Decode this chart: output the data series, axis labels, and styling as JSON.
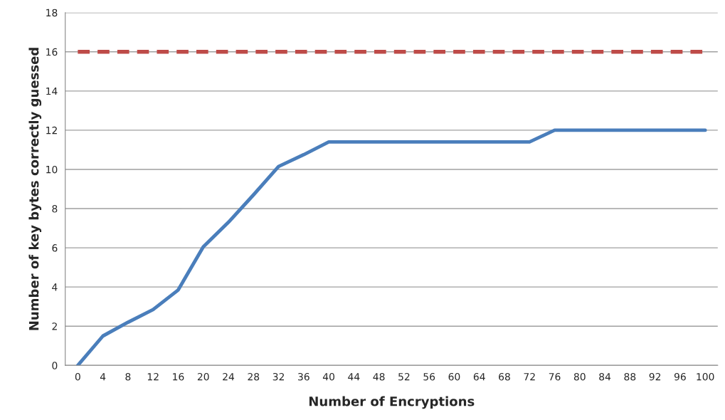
{
  "chart_data": {
    "type": "line",
    "xlabel": "Number of Encryptions",
    "ylabel": "Number of key bytes correctly guessed",
    "categories": [
      "0",
      "4",
      "8",
      "12",
      "16",
      "20",
      "24",
      "28",
      "32",
      "36",
      "40",
      "44",
      "48",
      "52",
      "56",
      "60",
      "64",
      "68",
      "72",
      "76",
      "80",
      "84",
      "88",
      "92",
      "96",
      "100"
    ],
    "series": [
      {
        "color": "#4a7ebb",
        "line_style": "solid",
        "values": [
          0,
          1.5,
          2.2,
          2.85,
          3.85,
          6.05,
          7.3,
          8.7,
          10.15,
          10.75,
          11.4,
          11.4,
          11.4,
          11.4,
          11.4,
          11.4,
          11.4,
          11.4,
          11.4,
          12,
          12,
          12,
          12,
          12,
          12,
          12
        ]
      },
      {
        "color": "#be4b48",
        "line_style": "dashed",
        "values": [
          16,
          16,
          16,
          16,
          16,
          16,
          16,
          16,
          16,
          16,
          16,
          16,
          16,
          16,
          16,
          16,
          16,
          16,
          16,
          16,
          16,
          16,
          16,
          16,
          16,
          16
        ]
      }
    ],
    "ylim": [
      0,
      18
    ],
    "yticks": [
      0,
      2,
      4,
      6,
      8,
      10,
      12,
      14,
      16,
      18
    ],
    "grid": "y",
    "marker": "none"
  }
}
